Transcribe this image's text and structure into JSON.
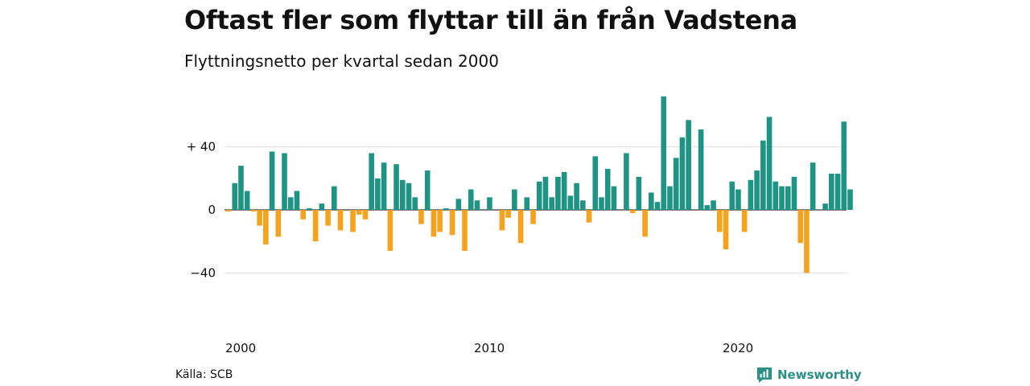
{
  "title": "Oftast fler som flyttar till än från Vadstena",
  "subtitle": "Flyttningsnetto per kvartal sedan 2000",
  "source": "Källa: SCB",
  "brand": {
    "name": "Newsworthy",
    "icon": "newsworthy-logo-icon"
  },
  "colors": {
    "positive": "#1f9384",
    "negative": "#f5a21e",
    "gridline": "#dddddd",
    "zeroline": "#333333"
  },
  "chart_data": {
    "type": "bar",
    "title": "Oftast fler som flyttar till än från Vadstena",
    "subtitle": "Flyttningsnetto per kvartal sedan 2000",
    "xlabel": "",
    "ylabel": "",
    "ylim": [
      -50,
      72
    ],
    "grid": true,
    "yticks": [
      {
        "value": 40,
        "label": "+ 40"
      },
      {
        "value": 0,
        "label": "0"
      },
      {
        "value": -40,
        "label": "−40"
      }
    ],
    "xticks": [
      {
        "year": 2000,
        "label": "2000"
      },
      {
        "year": 2010,
        "label": "2010"
      },
      {
        "year": 2020,
        "label": "2020"
      }
    ],
    "start_year": 2000,
    "start_quarter": 1,
    "values": [
      -1,
      17,
      28,
      12,
      -1,
      -10,
      -22,
      37,
      -17,
      36,
      8,
      12,
      -6,
      1,
      -20,
      4,
      -10,
      15,
      -13,
      0,
      -14,
      -3,
      -6,
      36,
      20,
      30,
      -26,
      29,
      19,
      17,
      8,
      -9,
      25,
      -17,
      -14,
      1,
      -16,
      7,
      -26,
      13,
      6,
      0,
      8,
      0,
      -13,
      -5,
      13,
      -21,
      8,
      -9,
      18,
      21,
      8,
      21,
      24,
      9,
      17,
      6,
      -8,
      34,
      8,
      26,
      15,
      0,
      36,
      -2,
      21,
      -17,
      11,
      5,
      72,
      15,
      33,
      46,
      57,
      0,
      51,
      3,
      6,
      -14,
      -25,
      18,
      13,
      -14,
      19,
      25,
      44,
      59,
      18,
      15,
      15,
      21,
      -21,
      -40,
      30,
      0,
      4,
      23,
      23,
      56,
      13
    ]
  }
}
